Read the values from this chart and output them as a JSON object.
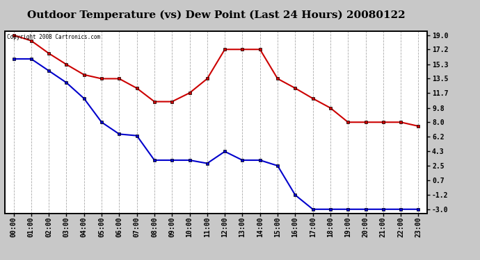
{
  "title": "Outdoor Temperature (vs) Dew Point (Last 24 Hours) 20080122",
  "copyright": "Copyright 2008 Cartronics.com",
  "x_labels": [
    "00:00",
    "01:00",
    "02:00",
    "03:00",
    "04:00",
    "05:00",
    "06:00",
    "07:00",
    "08:00",
    "09:00",
    "10:00",
    "11:00",
    "12:00",
    "13:00",
    "14:00",
    "15:00",
    "16:00",
    "17:00",
    "18:00",
    "19:00",
    "20:00",
    "21:00",
    "22:00",
    "23:00"
  ],
  "temp_data": [
    19.0,
    18.3,
    16.7,
    15.3,
    14.0,
    13.5,
    13.5,
    12.3,
    10.6,
    10.6,
    11.7,
    13.5,
    17.2,
    17.2,
    17.2,
    13.5,
    12.3,
    11.0,
    9.8,
    8.0,
    8.0,
    8.0,
    8.0,
    7.5
  ],
  "dew_data": [
    16.0,
    16.0,
    14.5,
    13.0,
    11.0,
    8.0,
    6.5,
    6.3,
    3.2,
    3.2,
    3.2,
    2.8,
    4.3,
    3.2,
    3.2,
    2.5,
    -1.2,
    -3.0,
    -3.0,
    -3.0,
    -3.0,
    -3.0,
    -3.0,
    -3.0
  ],
  "temp_color": "#cc0000",
  "dew_color": "#0000cc",
  "ylim_min": -3.0,
  "ylim_max": 19.0,
  "yticks": [
    19.0,
    17.2,
    15.3,
    13.5,
    11.7,
    9.8,
    8.0,
    6.2,
    4.3,
    2.5,
    0.7,
    -1.2,
    -3.0
  ],
  "bg_color": "#c8c8c8",
  "plot_bg": "#ffffff",
  "title_fontsize": 11,
  "label_fontsize": 7,
  "grid_color": "#aaaaaa",
  "title_bg": "#c8c8c8"
}
